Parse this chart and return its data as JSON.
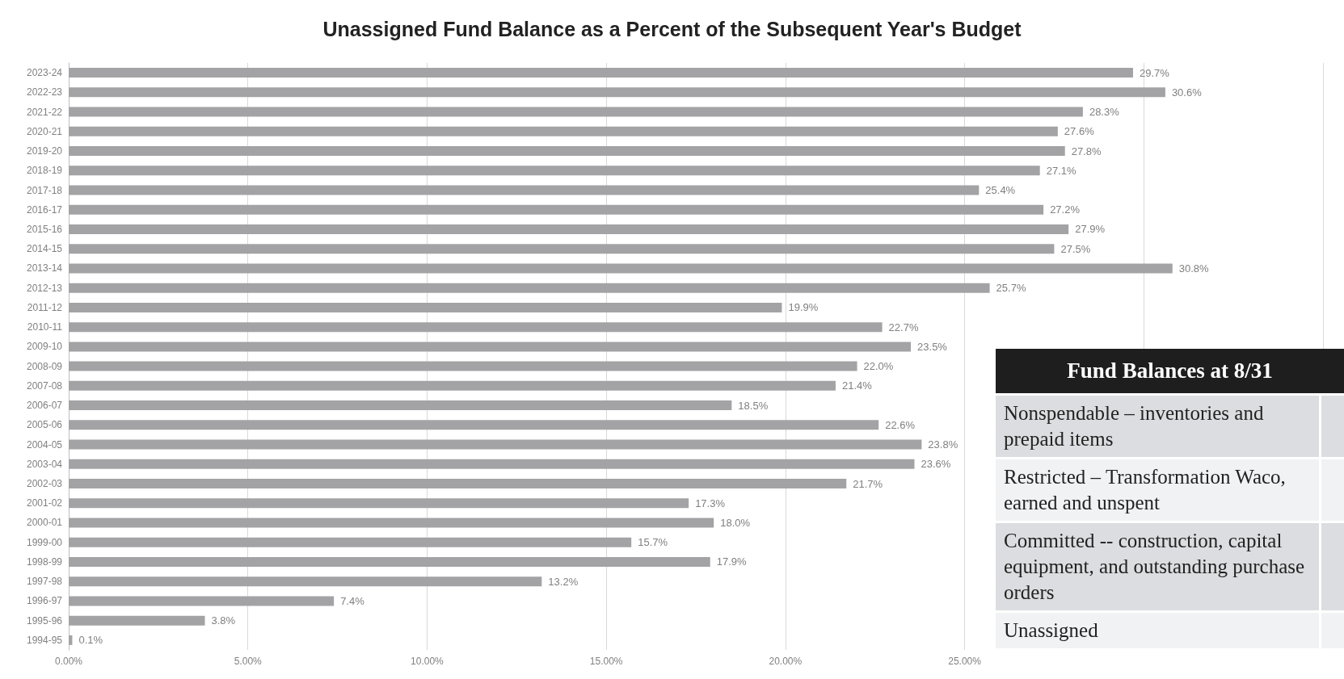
{
  "chart_data": [
    {
      "type": "bar",
      "orientation": "horizontal",
      "title": "Unassigned Fund Balance as a Percent of the Subsequent Year's Budget",
      "categories": [
        "2023-24",
        "2022-23",
        "2021-22",
        "2020-21",
        "2019-20",
        "2018-19",
        "2017-18",
        "2016-17",
        "2015-16",
        "2014-15",
        "2013-14",
        "2012-13",
        "2011-12",
        "2010-11",
        "2009-10",
        "2008-09",
        "2007-08",
        "2006-07",
        "2005-06",
        "2004-05",
        "2003-04",
        "2002-03",
        "2001-02",
        "2000-01",
        "1999-00",
        "1998-99",
        "1997-98",
        "1996-97",
        "1995-96",
        "1994-95"
      ],
      "values": [
        29.7,
        30.6,
        28.3,
        27.6,
        27.8,
        27.1,
        25.4,
        27.2,
        27.9,
        27.5,
        30.8,
        25.7,
        19.9,
        22.7,
        23.5,
        22.0,
        21.4,
        18.5,
        22.6,
        23.8,
        23.6,
        21.7,
        17.3,
        18.0,
        15.7,
        17.9,
        13.2,
        7.4,
        3.8,
        0.1
      ],
      "value_labels": [
        "29.7%",
        "30.6%",
        "28.3%",
        "27.6%",
        "27.8%",
        "27.1%",
        "25.4%",
        "27.2%",
        "27.9%",
        "27.5%",
        "30.8%",
        "25.7%",
        "19.9%",
        "22.7%",
        "23.5%",
        "22.0%",
        "21.4%",
        "18.5%",
        "22.6%",
        "23.8%",
        "23.6%",
        "21.7%",
        "17.3%",
        "18.0%",
        "15.7%",
        "17.9%",
        "13.2%",
        "7.4%",
        "3.8%",
        "0.1%"
      ],
      "color": "#a3a3a6",
      "xlim": [
        0,
        35
      ],
      "xticks": [
        {
          "value": 0,
          "label": "0.00%"
        },
        {
          "value": 5,
          "label": "5.00%"
        },
        {
          "value": 10,
          "label": "10.00%"
        },
        {
          "value": 15,
          "label": "15.00%"
        },
        {
          "value": 20,
          "label": "20.00%"
        },
        {
          "value": 25,
          "label": "25.00%"
        },
        {
          "value": 30,
          "label": null
        },
        {
          "value": 35,
          "label": null
        }
      ],
      "grid": "x"
    },
    {
      "type": "other",
      "title": "Fund Balances at 8/31",
      "annotations": [
        "Nonspendable – inventories and prepaid items",
        "Restricted – Transformation Waco, earned and unspent",
        "Committed -- construction, capital equipment, and outstanding purchase orders",
        "Unassigned"
      ]
    }
  ]
}
